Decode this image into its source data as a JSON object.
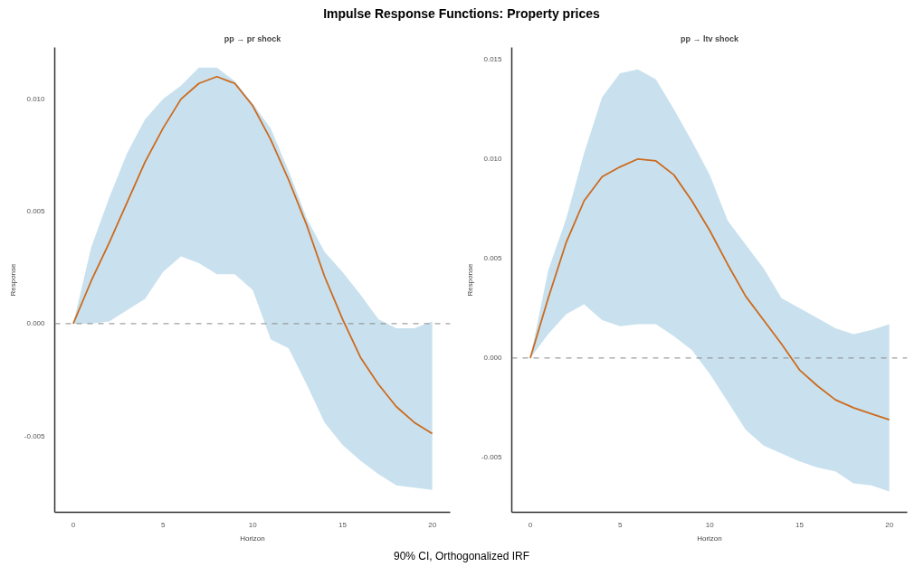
{
  "chart_data": [
    {
      "type": "line",
      "title": "pp → pr shock",
      "xlabel": "Horizon",
      "ylabel": "Response",
      "annotations": [
        "Impulse Response Functions: Property prices"
      ],
      "x": [
        0,
        1,
        2,
        3,
        4,
        5,
        6,
        7,
        8,
        9,
        10,
        11,
        12,
        13,
        14,
        15,
        16,
        17,
        18,
        19,
        20
      ],
      "xlim": [
        -1.03,
        21.0
      ],
      "ylim": [
        -0.0084,
        0.0123
      ],
      "xticks": [
        0,
        5,
        10,
        15,
        20
      ],
      "yticks": [
        {
          "value": -0.005,
          "label": "-0.005"
        },
        {
          "value": 0,
          "label": "0.000"
        },
        {
          "value": 0.005,
          "label": "0.005"
        },
        {
          "value": 0.01,
          "label": "0.010"
        }
      ],
      "grid": false,
      "marker": "none",
      "line_style": "solid",
      "ref_lines": [
        {
          "axis": "y",
          "value": 0,
          "label": null,
          "color": "#888888",
          "line_style": "dashed"
        }
      ],
      "series": [
        {
          "color": "#cc6a1e",
          "values": [
            0,
            0.0019,
            0.0036,
            0.0054,
            0.0072,
            0.0087,
            0.01,
            0.0107,
            0.011,
            0.0107,
            0.0097,
            0.0082,
            0.0064,
            0.0044,
            0.0021,
            0.0002,
            -0.0015,
            -0.0027,
            -0.0037,
            -0.0044,
            -0.0049
          ],
          "lower": [
            0,
            0.0,
            0.0001,
            0.0006,
            0.0011,
            0.0023,
            0.003,
            0.0027,
            0.0022,
            0.0022,
            0.0015,
            -0.0007,
            -0.0011,
            -0.0027,
            -0.0044,
            -0.0054,
            -0.0061,
            -0.0067,
            -0.0072,
            -0.0073,
            -0.0074
          ],
          "upper": [
            0,
            0.0034,
            0.0056,
            0.0076,
            0.0091,
            0.01,
            0.0106,
            0.0114,
            0.0114,
            0.0108,
            0.0098,
            0.0087,
            0.0068,
            0.0047,
            0.0032,
            0.0023,
            0.0013,
            0.0002,
            -0.0002,
            -0.0002,
            0.0001
          ]
        }
      ]
    },
    {
      "type": "line",
      "title": "pp → ltv shock",
      "xlabel": "Horizon",
      "ylabel": "Response",
      "annotations": [
        "90% CI, Orthogonalized IRF"
      ],
      "x": [
        0,
        1,
        2,
        3,
        4,
        5,
        6,
        7,
        8,
        9,
        10,
        11,
        12,
        13,
        14,
        15,
        16,
        17,
        18,
        19,
        20
      ],
      "xlim": [
        -1.03,
        21.0
      ],
      "ylim": [
        -0.00775,
        0.0156
      ],
      "xticks": [
        0,
        5,
        10,
        15,
        20
      ],
      "yticks": [
        {
          "value": -0.005,
          "label": "-0.005"
        },
        {
          "value": 0,
          "label": "0.000"
        },
        {
          "value": 0.005,
          "label": "0.005"
        },
        {
          "value": 0.01,
          "label": "0.010"
        },
        {
          "value": 0.015,
          "label": "0.015"
        }
      ],
      "grid": false,
      "marker": "none",
      "line_style": "solid",
      "ref_lines": [
        {
          "axis": "y",
          "value": 0,
          "label": null,
          "color": "#888888",
          "line_style": "dashed"
        }
      ],
      "series": [
        {
          "color": "#cc6a1e",
          "values": [
            0,
            0.003,
            0.0058,
            0.0079,
            0.0091,
            0.0096,
            0.01,
            0.0099,
            0.0092,
            0.0079,
            0.0064,
            0.0047,
            0.0031,
            0.0019,
            0.0007,
            -0.0006,
            -0.0014,
            -0.0021,
            -0.0025,
            -0.0028,
            -0.0031
          ],
          "lower": [
            0,
            0.0012,
            0.0022,
            0.0027,
            0.0019,
            0.0016,
            0.0017,
            0.0017,
            0.0011,
            0.0004,
            -0.0008,
            -0.0022,
            -0.0036,
            -0.0044,
            -0.0048,
            -0.0052,
            -0.0055,
            -0.0057,
            -0.0063,
            -0.0064,
            -0.0067
          ],
          "upper": [
            0,
            0.0044,
            0.007,
            0.0103,
            0.0131,
            0.0143,
            0.0145,
            0.014,
            0.0125,
            0.0109,
            0.0092,
            0.0069,
            0.0057,
            0.0045,
            0.003,
            0.0025,
            0.002,
            0.0015,
            0.0012,
            0.0014,
            0.0017
          ]
        }
      ]
    }
  ]
}
